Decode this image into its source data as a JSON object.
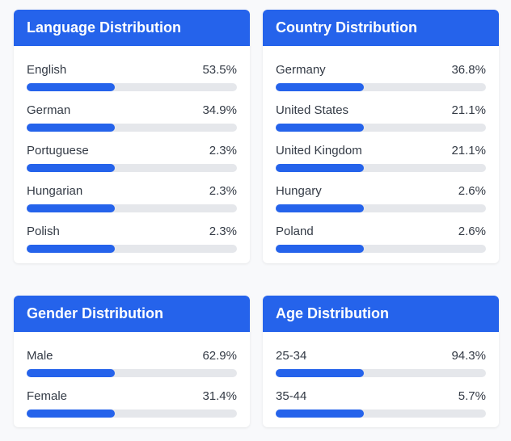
{
  "colors": {
    "accent": "#2563eb",
    "track": "#e5e7eb",
    "background": "#f8f9fb"
  },
  "cards": [
    {
      "key": "language",
      "title": "Language Distribution",
      "items": [
        {
          "label": "English",
          "value": "53.5%",
          "bar_fill": 0.42
        },
        {
          "label": "German",
          "value": "34.9%",
          "bar_fill": 0.42
        },
        {
          "label": "Portuguese",
          "value": "2.3%",
          "bar_fill": 0.42
        },
        {
          "label": "Hungarian",
          "value": "2.3%",
          "bar_fill": 0.42
        },
        {
          "label": "Polish",
          "value": "2.3%",
          "bar_fill": 0.42
        }
      ]
    },
    {
      "key": "country",
      "title": "Country Distribution",
      "items": [
        {
          "label": "Germany",
          "value": "36.8%",
          "bar_fill": 0.42
        },
        {
          "label": "United States",
          "value": "21.1%",
          "bar_fill": 0.42
        },
        {
          "label": "United Kingdom",
          "value": "21.1%",
          "bar_fill": 0.42
        },
        {
          "label": "Hungary",
          "value": "2.6%",
          "bar_fill": 0.42
        },
        {
          "label": "Poland",
          "value": "2.6%",
          "bar_fill": 0.42
        }
      ]
    },
    {
      "key": "gender",
      "title": "Gender Distribution",
      "items": [
        {
          "label": "Male",
          "value": "62.9%",
          "bar_fill": 0.42
        },
        {
          "label": "Female",
          "value": "31.4%",
          "bar_fill": 0.42
        }
      ]
    },
    {
      "key": "age",
      "title": "Age Distribution",
      "items": [
        {
          "label": "25-34",
          "value": "94.3%",
          "bar_fill": 0.42
        },
        {
          "label": "35-44",
          "value": "5.7%",
          "bar_fill": 0.42
        }
      ]
    }
  ]
}
